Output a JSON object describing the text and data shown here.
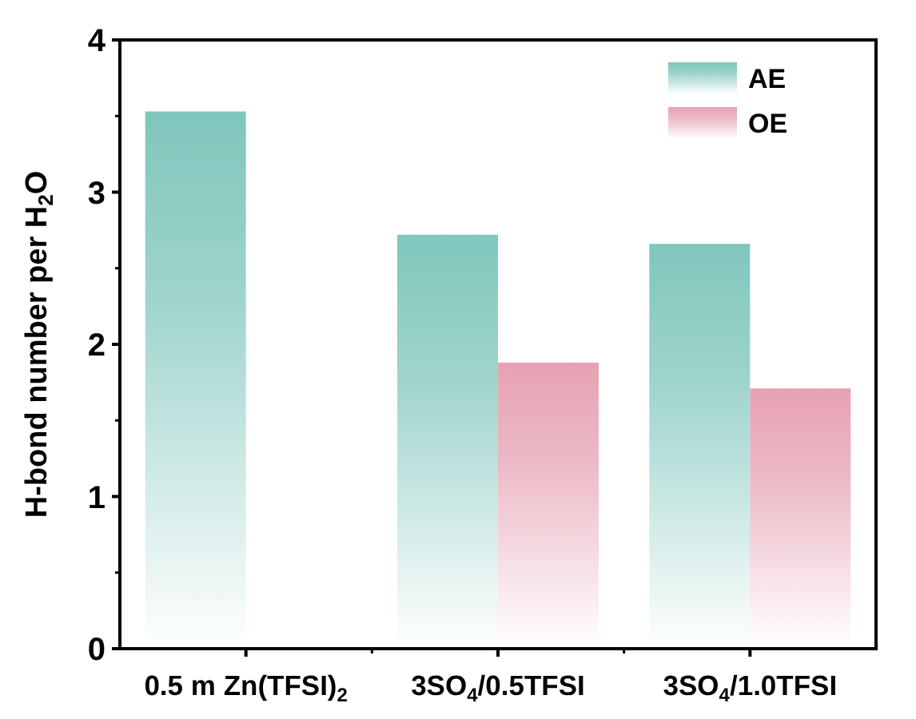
{
  "chart_data": {
    "type": "bar",
    "ylabel": "H-bond number per H$_{2}$O",
    "categories": [
      "0.5 m Zn(TFSI)$_{2}$",
      "3SO$_{4}$/0.5TFSI",
      "3SO$_{4}$/1.0TFSI"
    ],
    "series": [
      {
        "name": "AE",
        "color": "#7fc6bc",
        "values": [
          3.53,
          2.72,
          2.66
        ]
      },
      {
        "name": "OE",
        "color": "#e6a2b3",
        "values": [
          null,
          1.88,
          1.71
        ]
      }
    ],
    "ylim": [
      0,
      4
    ],
    "yticks": [
      0,
      1,
      2,
      3,
      4
    ],
    "legend": "top right",
    "grid": false
  }
}
